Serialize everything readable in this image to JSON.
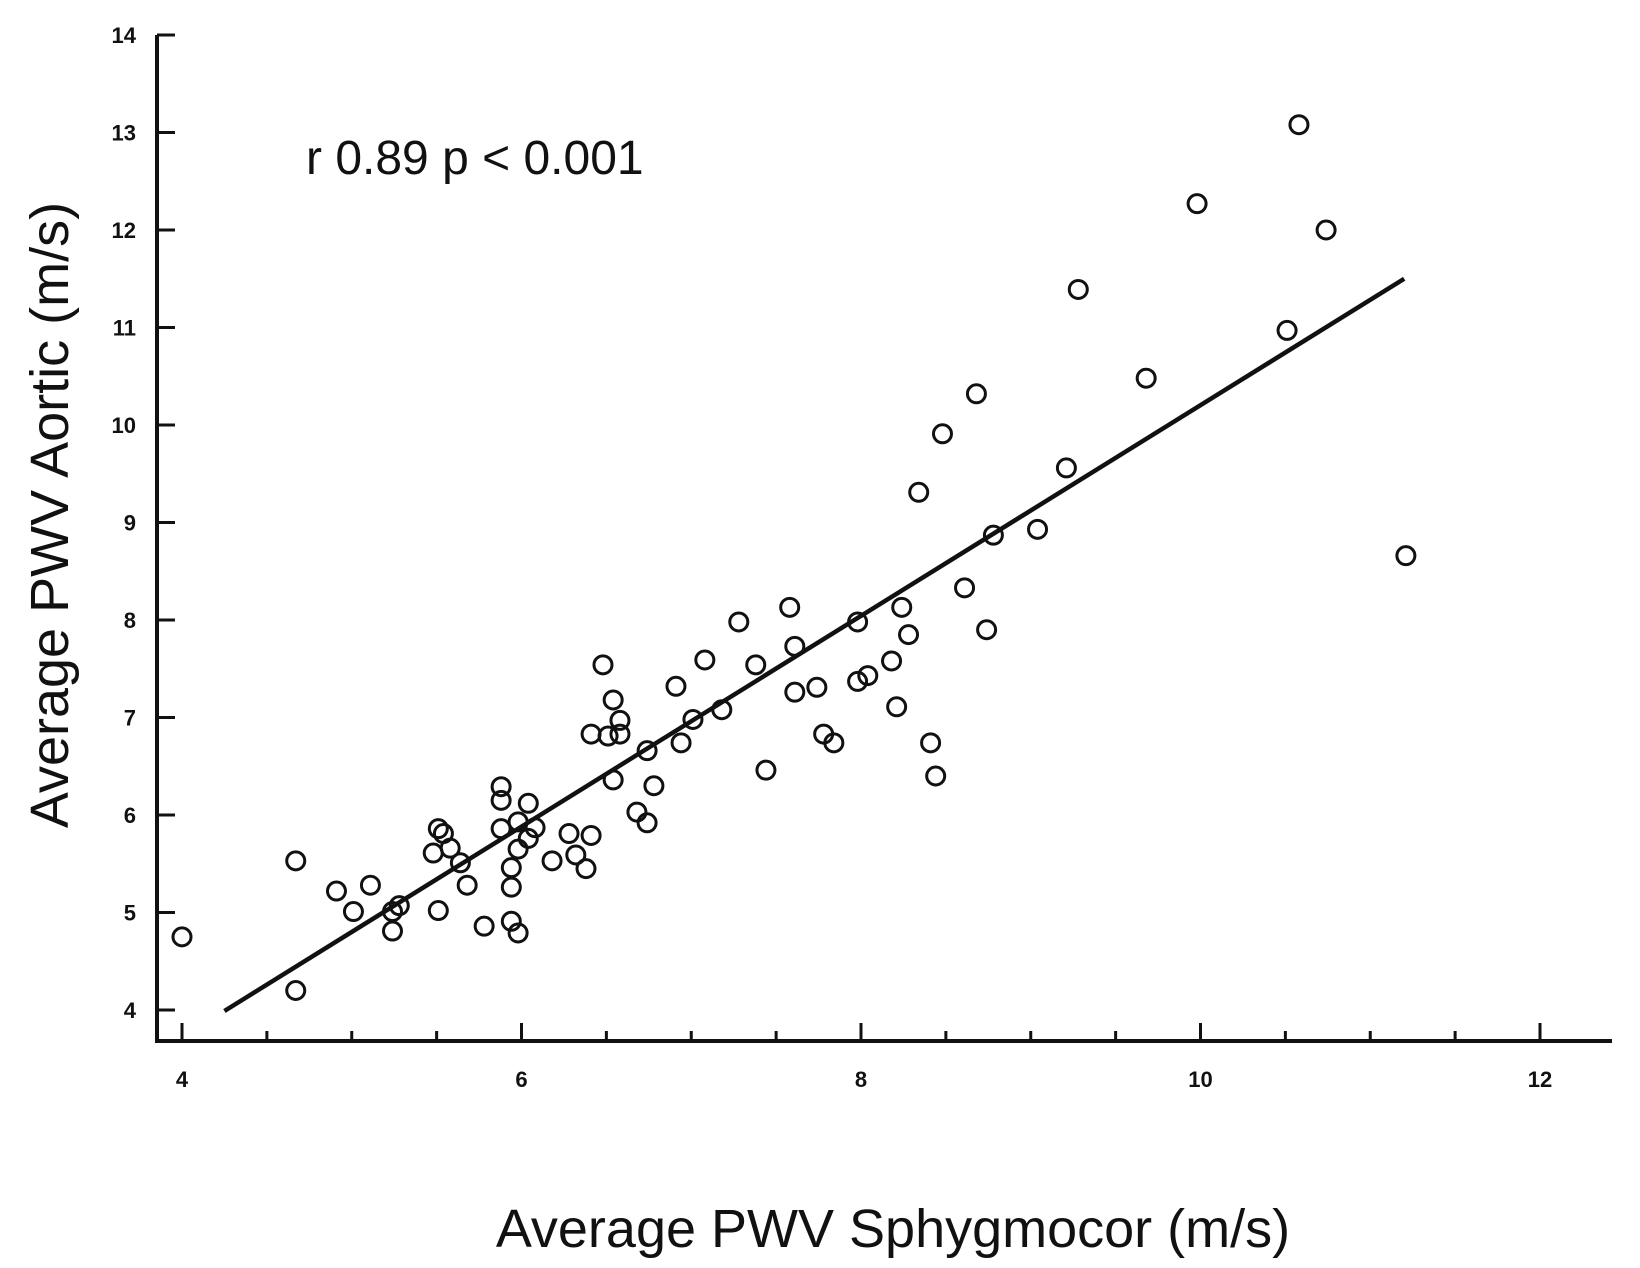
{
  "chart_data": {
    "type": "scatter",
    "xlabel": "Average PWV Sphygmocor (m/s)",
    "ylabel": "Average PWV Aortic (m/s)",
    "annotation": "r 0.89  p < 0.001",
    "xlim": [
      4,
      12
    ],
    "ylim": [
      4,
      14
    ],
    "x_ticks": [
      4,
      6,
      8,
      10,
      12
    ],
    "x_minor_step": 0.5,
    "y_ticks": [
      4,
      5,
      6,
      7,
      8,
      9,
      10,
      11,
      12,
      13,
      14
    ],
    "grid": false,
    "legend": "none",
    "regression_line": {
      "x": [
        4.25,
        11.2
      ],
      "y": [
        3.99,
        11.5
      ]
    },
    "points": [
      {
        "x": 4.0,
        "y": 4.75
      },
      {
        "x": 4.67,
        "y": 5.53
      },
      {
        "x": 4.67,
        "y": 4.2
      },
      {
        "x": 4.91,
        "y": 5.22
      },
      {
        "x": 5.01,
        "y": 5.01
      },
      {
        "x": 5.11,
        "y": 5.28
      },
      {
        "x": 5.24,
        "y": 4.81
      },
      {
        "x": 5.24,
        "y": 5.01
      },
      {
        "x": 5.28,
        "y": 5.07
      },
      {
        "x": 5.48,
        "y": 5.61
      },
      {
        "x": 5.51,
        "y": 5.86
      },
      {
        "x": 5.54,
        "y": 5.81
      },
      {
        "x": 5.51,
        "y": 5.02
      },
      {
        "x": 5.58,
        "y": 5.66
      },
      {
        "x": 5.64,
        "y": 5.51
      },
      {
        "x": 5.68,
        "y": 5.28
      },
      {
        "x": 5.78,
        "y": 4.86
      },
      {
        "x": 5.88,
        "y": 6.29
      },
      {
        "x": 5.88,
        "y": 6.15
      },
      {
        "x": 5.88,
        "y": 5.86
      },
      {
        "x": 5.94,
        "y": 5.46
      },
      {
        "x": 5.94,
        "y": 5.26
      },
      {
        "x": 5.94,
        "y": 4.91
      },
      {
        "x": 5.98,
        "y": 4.79
      },
      {
        "x": 5.98,
        "y": 5.93
      },
      {
        "x": 5.98,
        "y": 5.65
      },
      {
        "x": 6.04,
        "y": 6.12
      },
      {
        "x": 6.04,
        "y": 5.76
      },
      {
        "x": 6.08,
        "y": 5.87
      },
      {
        "x": 6.18,
        "y": 5.53
      },
      {
        "x": 6.28,
        "y": 5.81
      },
      {
        "x": 6.32,
        "y": 5.59
      },
      {
        "x": 6.38,
        "y": 5.45
      },
      {
        "x": 6.41,
        "y": 6.83
      },
      {
        "x": 6.41,
        "y": 5.79
      },
      {
        "x": 6.48,
        "y": 7.54
      },
      {
        "x": 6.51,
        "y": 6.81
      },
      {
        "x": 6.54,
        "y": 7.18
      },
      {
        "x": 6.58,
        "y": 6.97
      },
      {
        "x": 6.58,
        "y": 6.83
      },
      {
        "x": 6.54,
        "y": 6.36
      },
      {
        "x": 6.68,
        "y": 6.03
      },
      {
        "x": 6.74,
        "y": 5.92
      },
      {
        "x": 6.74,
        "y": 6.66
      },
      {
        "x": 6.78,
        "y": 6.3
      },
      {
        "x": 6.91,
        "y": 7.32
      },
      {
        "x": 6.94,
        "y": 6.74
      },
      {
        "x": 7.01,
        "y": 6.98
      },
      {
        "x": 7.08,
        "y": 7.59
      },
      {
        "x": 7.18,
        "y": 7.08
      },
      {
        "x": 7.28,
        "y": 7.98
      },
      {
        "x": 7.38,
        "y": 7.54
      },
      {
        "x": 7.44,
        "y": 6.46
      },
      {
        "x": 7.58,
        "y": 8.13
      },
      {
        "x": 7.61,
        "y": 7.73
      },
      {
        "x": 7.61,
        "y": 7.26
      },
      {
        "x": 7.74,
        "y": 7.31
      },
      {
        "x": 7.78,
        "y": 6.83
      },
      {
        "x": 7.84,
        "y": 6.74
      },
      {
        "x": 7.98,
        "y": 7.98
      },
      {
        "x": 7.98,
        "y": 7.37
      },
      {
        "x": 8.04,
        "y": 7.43
      },
      {
        "x": 8.18,
        "y": 7.58
      },
      {
        "x": 8.24,
        "y": 8.13
      },
      {
        "x": 8.21,
        "y": 7.11
      },
      {
        "x": 8.28,
        "y": 7.85
      },
      {
        "x": 8.34,
        "y": 9.31
      },
      {
        "x": 8.41,
        "y": 6.74
      },
      {
        "x": 8.44,
        "y": 6.4
      },
      {
        "x": 8.48,
        "y": 9.91
      },
      {
        "x": 8.61,
        "y": 8.33
      },
      {
        "x": 8.68,
        "y": 10.32
      },
      {
        "x": 8.74,
        "y": 7.9
      },
      {
        "x": 8.78,
        "y": 8.87
      },
      {
        "x": 9.04,
        "y": 8.93
      },
      {
        "x": 9.21,
        "y": 9.56
      },
      {
        "x": 9.28,
        "y": 11.39
      },
      {
        "x": 9.68,
        "y": 10.48
      },
      {
        "x": 9.98,
        "y": 12.27
      },
      {
        "x": 10.51,
        "y": 10.97
      },
      {
        "x": 10.58,
        "y": 13.08
      },
      {
        "x": 10.74,
        "y": 12.0
      },
      {
        "x": 11.21,
        "y": 8.66
      }
    ]
  }
}
